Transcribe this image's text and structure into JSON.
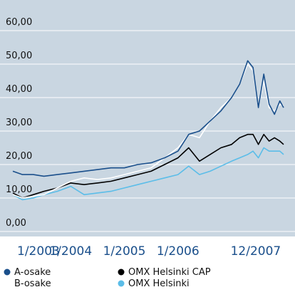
{
  "chart_data": {
    "type": "line",
    "x": [
      2002.92,
      2003.1,
      2003.3,
      2003.5,
      2003.75,
      2004.0,
      2004.25,
      2004.5,
      2004.75,
      2005.0,
      2005.25,
      2005.5,
      2005.75,
      2006.0,
      2006.2,
      2006.4,
      2006.6,
      2006.8,
      2007.0,
      2007.15,
      2007.3,
      2007.4,
      2007.5,
      2007.6,
      2007.7,
      2007.8,
      2007.9,
      2007.97
    ],
    "series": [
      {
        "name": "OMX Helsinki",
        "color": "#5bbde8",
        "values": [
          11,
          9.5,
          10,
          11,
          12,
          13.5,
          11,
          11.5,
          12,
          13,
          14,
          15,
          16,
          17,
          19.5,
          17,
          18,
          19.5,
          21,
          22,
          23,
          24,
          22,
          25,
          24,
          24,
          24,
          23
        ]
      },
      {
        "name": "OMX Helsinki CAP",
        "color": "#000000",
        "values": [
          11.5,
          10,
          11,
          12,
          13,
          14.5,
          14,
          14.5,
          15,
          16,
          17,
          18,
          20,
          22,
          25,
          21,
          23,
          25,
          26,
          28,
          29,
          29,
          26,
          29,
          27,
          28,
          27,
          26
        ]
      },
      {
        "name": "B-osake",
        "color": "#ffffff",
        "values": [
          11,
          10,
          10.5,
          11,
          13,
          15,
          16,
          15.5,
          16,
          17,
          18,
          19,
          22,
          25,
          29,
          28,
          33,
          37,
          40,
          44,
          50,
          48,
          37,
          45,
          37,
          36,
          38,
          37.5
        ]
      },
      {
        "name": "A-osake",
        "color": "#1a4f8b",
        "values": [
          18,
          17,
          17,
          16.5,
          17,
          17.5,
          18,
          18.5,
          19,
          19,
          20,
          20.5,
          22,
          24,
          29,
          30,
          33,
          36,
          40,
          44,
          51,
          49,
          37,
          47,
          38,
          35,
          39,
          37
        ]
      }
    ],
    "xlim": [
      2002.92,
      2007.97
    ],
    "xticks": [
      {
        "value": 2003.0,
        "label": "1/2003"
      },
      {
        "value": 2004.0,
        "label": "1/2004"
      },
      {
        "value": 2005.0,
        "label": "1/2005"
      },
      {
        "value": 2006.0,
        "label": "1/2006"
      },
      {
        "value": 2007.92,
        "label": "12/2007"
      }
    ],
    "ylim": [
      0,
      60
    ],
    "yticks": [
      {
        "value": 0,
        "label": "0,00"
      },
      {
        "value": 10,
        "label": "10,00"
      },
      {
        "value": 20,
        "label": "20,00"
      },
      {
        "value": 30,
        "label": "30,00"
      },
      {
        "value": 40,
        "label": "40,00"
      },
      {
        "value": 50,
        "label": "50,00"
      },
      {
        "value": 60,
        "label": "60,00"
      }
    ],
    "grid": true
  }
}
